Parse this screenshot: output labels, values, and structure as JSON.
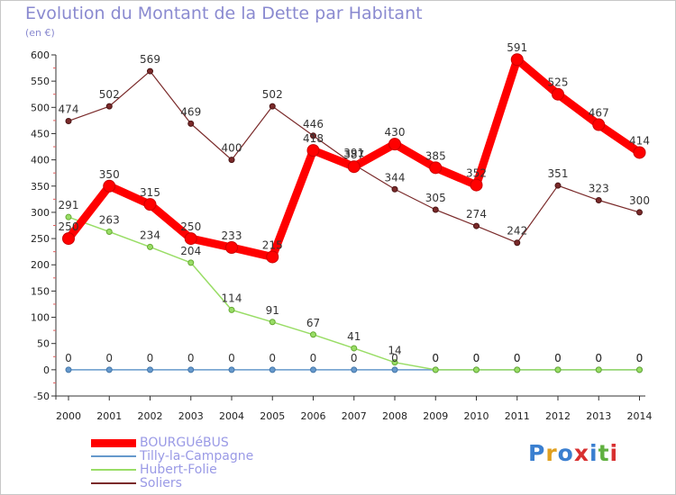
{
  "chart_data": {
    "type": "line",
    "title": "Evolution du Montant de la Dette par Habitant",
    "subtitle": "(en €)",
    "categories": [
      "2000",
      "2001",
      "2002",
      "2003",
      "2004",
      "2005",
      "2006",
      "2007",
      "2008",
      "2009",
      "2010",
      "2011",
      "2012",
      "2013",
      "2014"
    ],
    "ylim": [
      -50,
      600
    ],
    "yticks": [
      -50,
      0,
      50,
      100,
      150,
      200,
      250,
      300,
      350,
      400,
      450,
      500,
      550,
      600
    ],
    "grid": false,
    "legend_position": "bottom-left",
    "series": [
      {
        "name": "BOURGUéBUS",
        "color": "#ff0000",
        "values": [
          250,
          350,
          315,
          250,
          233,
          215,
          418,
          387,
          430,
          385,
          352,
          591,
          525,
          467,
          414
        ]
      },
      {
        "name": "Tilly-la-Campagne",
        "color": "#6699cc",
        "values": [
          0,
          0,
          0,
          0,
          0,
          0,
          0,
          0,
          0,
          0,
          0,
          0,
          0,
          0,
          0
        ]
      },
      {
        "name": "Hubert-Folie",
        "color": "#99dd66",
        "values": [
          291,
          263,
          234,
          204,
          114,
          91,
          67,
          41,
          14,
          0,
          0,
          0,
          0,
          0,
          0
        ]
      },
      {
        "name": "Soliers",
        "color": "#7a2a2a",
        "values": [
          474,
          502,
          569,
          469,
          400,
          502,
          446,
          391,
          344,
          305,
          274,
          242,
          351,
          323,
          300
        ]
      }
    ]
  },
  "brand": {
    "text": "Proxiti"
  }
}
